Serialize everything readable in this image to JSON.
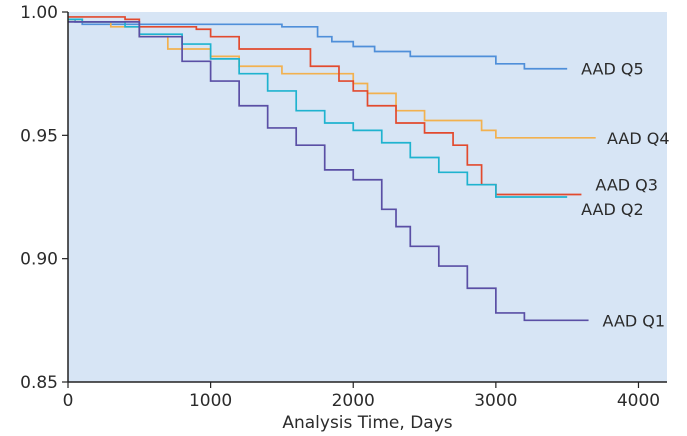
{
  "chart_data": {
    "type": "line",
    "title": "",
    "xlabel": "Analysis Time, Days",
    "ylabel": "",
    "xlim": [
      0,
      4200
    ],
    "ylim": [
      0.85,
      1.0
    ],
    "x_ticks": [
      0,
      1000,
      2000,
      3000,
      4000
    ],
    "y_ticks": [
      0.85,
      0.9,
      0.95,
      1.0
    ],
    "x_tick_labels": [
      "0",
      "1000",
      "2000",
      "3000",
      "4000"
    ],
    "y_tick_labels": [
      "0.85",
      "0.90",
      "0.95",
      "1.00"
    ],
    "grid": false,
    "legend": "direct-labels-right",
    "background_color": "#d7e5f5",
    "series": [
      {
        "name": "AAD Q5",
        "color": "#4f8fd9",
        "step": true,
        "x": [
          0,
          50,
          100,
          500,
          1000,
          1500,
          1750,
          1850,
          2000,
          2150,
          2400,
          3000,
          3200,
          3500
        ],
        "y": [
          0.997,
          0.996,
          0.995,
          0.995,
          0.995,
          0.994,
          0.99,
          0.988,
          0.986,
          0.984,
          0.982,
          0.979,
          0.977,
          0.977
        ]
      },
      {
        "name": "AAD Q4",
        "color": "#f2b14f",
        "step": true,
        "x": [
          0,
          100,
          300,
          500,
          700,
          1000,
          1200,
          1500,
          2000,
          2100,
          2300,
          2500,
          2900,
          3000,
          3700
        ],
        "y": [
          0.997,
          0.996,
          0.994,
          0.99,
          0.985,
          0.982,
          0.978,
          0.975,
          0.971,
          0.967,
          0.96,
          0.956,
          0.952,
          0.949,
          0.949
        ]
      },
      {
        "name": "AAD Q3",
        "color": "#e24a2e",
        "step": true,
        "x": [
          0,
          100,
          400,
          500,
          900,
          1000,
          1200,
          1700,
          1900,
          2000,
          2100,
          2300,
          2500,
          2700,
          2800,
          2900,
          3000,
          3600
        ],
        "y": [
          0.998,
          0.998,
          0.997,
          0.994,
          0.993,
          0.99,
          0.985,
          0.978,
          0.972,
          0.968,
          0.962,
          0.955,
          0.951,
          0.946,
          0.938,
          0.93,
          0.926,
          0.926
        ]
      },
      {
        "name": "AAD Q2",
        "color": "#1fb3cf",
        "step": true,
        "x": [
          0,
          100,
          400,
          500,
          800,
          1000,
          1200,
          1400,
          1600,
          1800,
          2000,
          2200,
          2400,
          2600,
          2800,
          3000,
          3500
        ],
        "y": [
          0.997,
          0.996,
          0.994,
          0.991,
          0.987,
          0.981,
          0.975,
          0.968,
          0.96,
          0.955,
          0.952,
          0.947,
          0.941,
          0.935,
          0.93,
          0.925,
          0.925
        ]
      },
      {
        "name": "AAD Q1",
        "color": "#5a4fa5",
        "step": true,
        "x": [
          0,
          100,
          500,
          800,
          1000,
          1200,
          1400,
          1600,
          1800,
          2000,
          2200,
          2300,
          2400,
          2600,
          2800,
          3000,
          3200,
          3650
        ],
        "y": [
          0.996,
          0.996,
          0.99,
          0.98,
          0.972,
          0.962,
          0.953,
          0.946,
          0.936,
          0.932,
          0.92,
          0.913,
          0.905,
          0.897,
          0.888,
          0.878,
          0.875,
          0.875
        ]
      }
    ]
  }
}
